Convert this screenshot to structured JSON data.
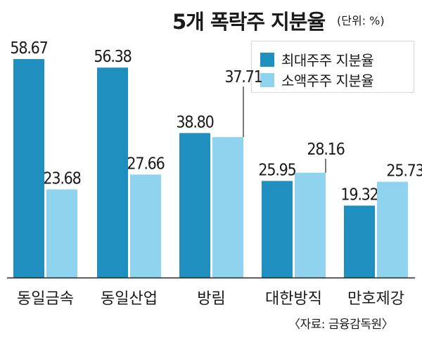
{
  "title": "5개 폭락주 지분율",
  "unit": "(단위: %)",
  "source": "〈자료: 금융감독원〉",
  "colors": {
    "major": "#1f8fc0",
    "minor": "#8fd3ef",
    "axis": "#222222",
    "leader": "#222222"
  },
  "chart_data": {
    "type": "bar",
    "title": "5개 폭락주 지분율",
    "xlabel": "",
    "ylabel": "",
    "unit": "(단위: %)",
    "categories": [
      "동일금속",
      "동일산업",
      "방림",
      "대한방직",
      "만호제강"
    ],
    "series": [
      {
        "name": "최대주주 지분율",
        "values": [
          58.67,
          56.38,
          38.8,
          25.95,
          19.32
        ]
      },
      {
        "name": "소액주주 지분율",
        "values": [
          23.68,
          27.66,
          37.71,
          28.16,
          25.73
        ]
      }
    ],
    "value_labels": [
      [
        "58.67",
        "56.38",
        "38.80",
        "25.95",
        "19.32"
      ],
      [
        "23.68",
        "27.66",
        "37.71",
        "28.16",
        "25.73"
      ]
    ],
    "ylim": [
      0,
      62
    ],
    "grid": false,
    "legend": "top-right"
  }
}
